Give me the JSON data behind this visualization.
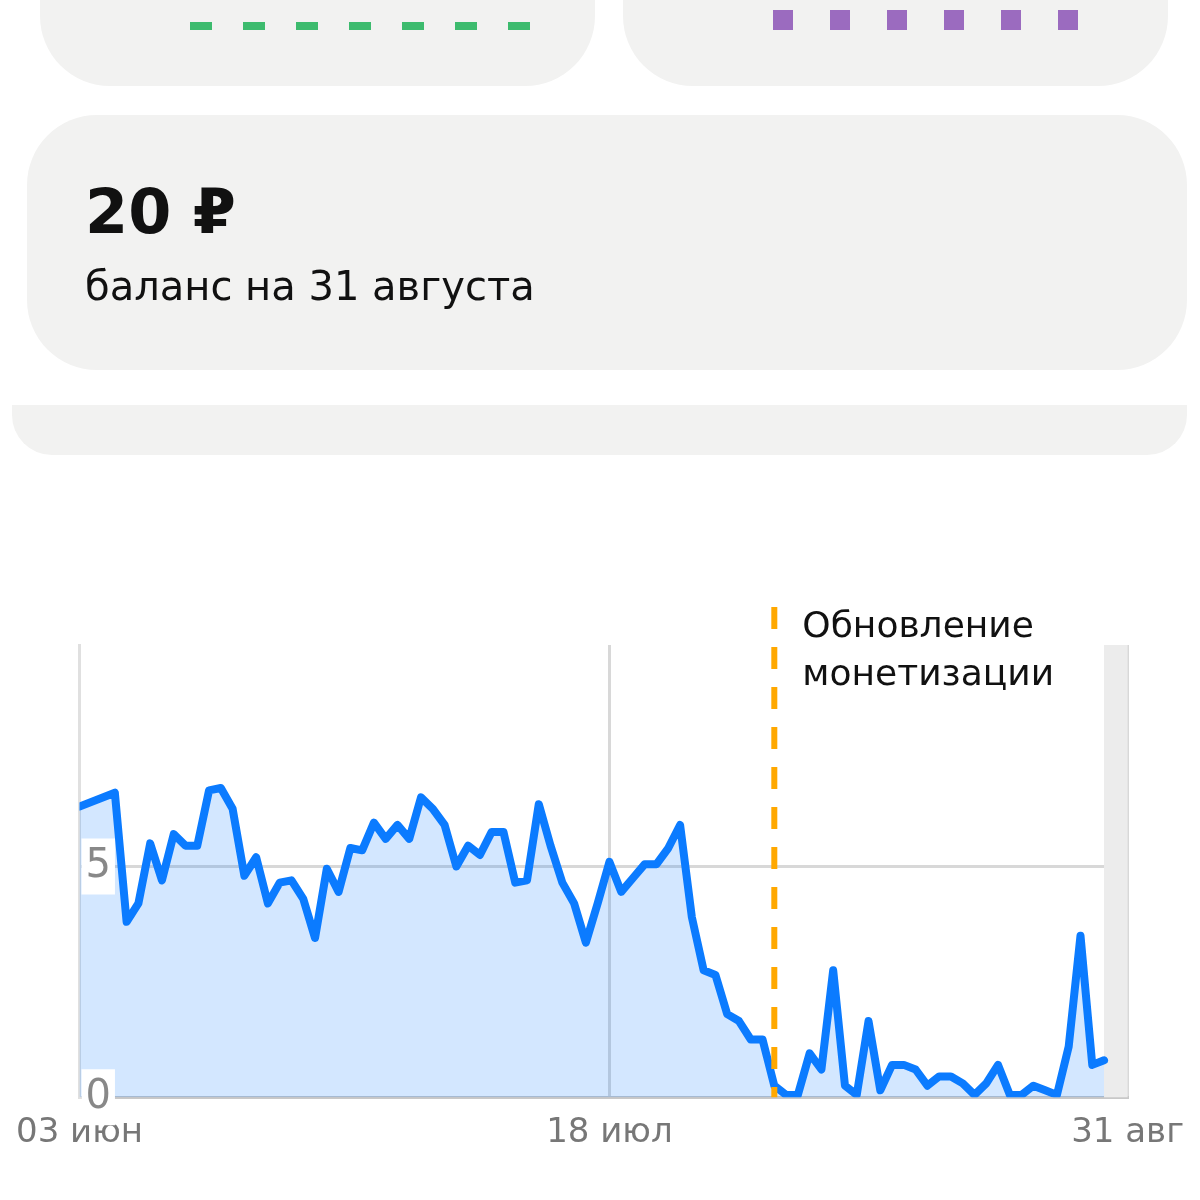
{
  "chart_data": {
    "type": "area",
    "annotations": [
      "20 ₽",
      "баланс на 31 августа"
    ],
    "x": [
      "--06-03",
      "--06-04",
      "--06-05",
      "--06-06",
      "--06-07",
      "--06-08",
      "--06-09",
      "--06-10",
      "--06-11",
      "--06-12",
      "--06-13",
      "--06-14",
      "--06-15",
      "--06-16",
      "--06-17",
      "--06-18",
      "--06-19",
      "--06-20",
      "--06-21",
      "--06-22",
      "--06-23",
      "--06-24",
      "--06-25",
      "--06-26",
      "--06-27",
      "--06-28",
      "--06-29",
      "--06-30",
      "--07-01",
      "--07-02",
      "--07-03",
      "--07-04",
      "--07-05",
      "--07-06",
      "--07-07",
      "--07-08",
      "--07-09",
      "--07-10",
      "--07-11",
      "--07-12",
      "--07-13",
      "--07-14",
      "--07-15",
      "--07-16",
      "--07-17",
      "--07-18",
      "--07-19",
      "--07-20",
      "--07-21",
      "--07-22",
      "--07-23",
      "--07-24",
      "--07-25",
      "--07-26",
      "--07-27",
      "--07-28",
      "--07-29",
      "--07-30",
      "--07-31",
      "--08-01",
      "--08-02",
      "--08-03",
      "--08-04",
      "--08-05",
      "--08-06",
      "--08-07",
      "--08-08",
      "--08-09",
      "--08-10",
      "--08-11",
      "--08-12",
      "--08-13",
      "--08-14",
      "--08-15",
      "--08-16",
      "--08-17",
      "--08-18",
      "--08-19",
      "--08-20",
      "--08-21",
      "--08-22",
      "--08-23",
      "--08-24",
      "--08-25",
      "--08-26",
      "--08-27",
      "--08-28",
      "--08-29"
    ],
    "series": [
      {
        "color": "#0b7bff",
        "values": [
          6.3,
          null,
          null,
          6.6,
          3.8,
          4.2,
          5.5,
          4.7,
          5.7,
          5.45,
          5.45,
          6.65,
          6.7,
          6.25,
          4.8,
          5.2,
          4.2,
          4.65,
          4.7,
          4.3,
          3.45,
          4.95,
          4.45,
          5.4,
          5.35,
          5.95,
          5.6,
          5.9,
          5.6,
          6.5,
          6.25,
          5.9,
          5.0,
          5.45,
          5.25,
          5.75,
          5.75,
          4.65,
          4.7,
          6.35,
          5.45,
          4.65,
          4.2,
          3.35,
          4.2,
          5.1,
          4.45,
          4.75,
          5.05,
          5.05,
          5.4,
          5.9,
          3.9,
          2.75,
          2.65,
          1.8,
          1.65,
          1.25,
          1.25,
          0.25,
          0.05,
          0.05,
          0.95,
          0.6,
          2.75,
          0.25,
          0.05,
          1.65,
          0.15,
          0.7,
          0.7,
          0.6,
          0.25,
          0.45,
          0.45,
          0.3,
          0.05,
          0.3,
          0.7,
          0.05,
          0.05,
          0.25,
          0.15,
          0.05,
          1.1,
          3.5,
          0.7,
          0.8
        ]
      }
    ],
    "xlim": [
      "--06-03",
      "--08-31"
    ],
    "xticks": [
      {
        "value": "--06-03",
        "label": "03 июн"
      },
      {
        "value": "--07-18",
        "label": "18 июл"
      },
      {
        "value": "--08-31",
        "label": "31 авг"
      }
    ],
    "ylim": [
      0,
      9.8
    ],
    "yticks": [
      0,
      5
    ],
    "grid": true,
    "legend": false,
    "ref_lines": [
      {
        "axis": "x",
        "value": "--08-01",
        "label": "Обновление монетизации",
        "color": "#ffa800",
        "line_style": "dashed"
      }
    ],
    "bands": [
      {
        "axis": "x",
        "from": "--08-29",
        "to": "--08-31",
        "color": "#ececec"
      }
    ]
  }
}
